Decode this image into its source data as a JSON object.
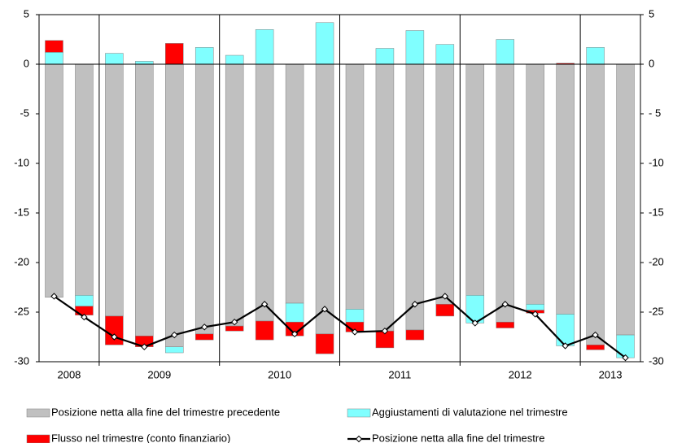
{
  "chart_data": {
    "type": "stacked-bar-line",
    "categories": [
      "2008",
      "2008",
      "2009",
      "2009",
      "2009",
      "2009",
      "2010",
      "2010",
      "2010",
      "2010",
      "2011",
      "2011",
      "2011",
      "2011",
      "2012",
      "2012",
      "2012",
      "2012",
      "2013",
      "2013"
    ],
    "series": [
      {
        "name": "Posizione netta alla fine del trimestre precedente",
        "type": "bar",
        "color": "#c0c0c0",
        "values": [
          -23.5,
          -23.3,
          -25.4,
          -27.4,
          -28.5,
          -27.2,
          -26.4,
          -25.9,
          -24.1,
          -27.2,
          -24.7,
          -26.9,
          -26.8,
          -24.2,
          -23.3,
          -26.0,
          -24.2,
          -25.2,
          -28.3,
          -27.3
        ]
      },
      {
        "name": "Aggiustamenti di valutazione nel trimestre",
        "type": "bar",
        "color": "#80ffff",
        "values": [
          1.2,
          -1.1,
          1.1,
          0.3,
          -0.6,
          1.7,
          0.9,
          3.5,
          -1.9,
          4.2,
          -1.3,
          1.6,
          3.4,
          2.0,
          -2.8,
          2.5,
          -0.6,
          -3.2,
          1.7,
          -2.3
        ]
      },
      {
        "name": "Flusso nel trimestre (conto finanziario)",
        "type": "bar",
        "color": "#ff0000",
        "values": [
          1.2,
          -0.9,
          -2.9,
          -1.1,
          2.1,
          -0.6,
          -0.5,
          -1.9,
          -1.4,
          -2.0,
          -1.0,
          -1.7,
          -1.0,
          -1.2,
          0,
          -0.6,
          -0.3,
          0.1,
          -0.5,
          0
        ]
      },
      {
        "name": "Posizione netta alla fine del trimestre",
        "type": "line",
        "color": "#000000",
        "values": [
          -23.4,
          -25.5,
          -27.5,
          -28.5,
          -27.3,
          -26.5,
          -26.0,
          -24.2,
          -27.2,
          -24.7,
          -27.0,
          -26.9,
          -24.2,
          -23.4,
          -26.1,
          -24.2,
          -25.2,
          -28.4,
          -27.3,
          -29.6
        ]
      }
    ],
    "ylim": [
      -30,
      5
    ],
    "yticks": [
      -30,
      -25,
      -20,
      -15,
      -10,
      -5,
      0,
      5
    ],
    "y2lim": [
      -30,
      5
    ],
    "y2ticks": [
      -30,
      -25,
      -20,
      -15,
      -10,
      {
        "value": -5,
        "label": "- 5"
      },
      0,
      5
    ]
  }
}
